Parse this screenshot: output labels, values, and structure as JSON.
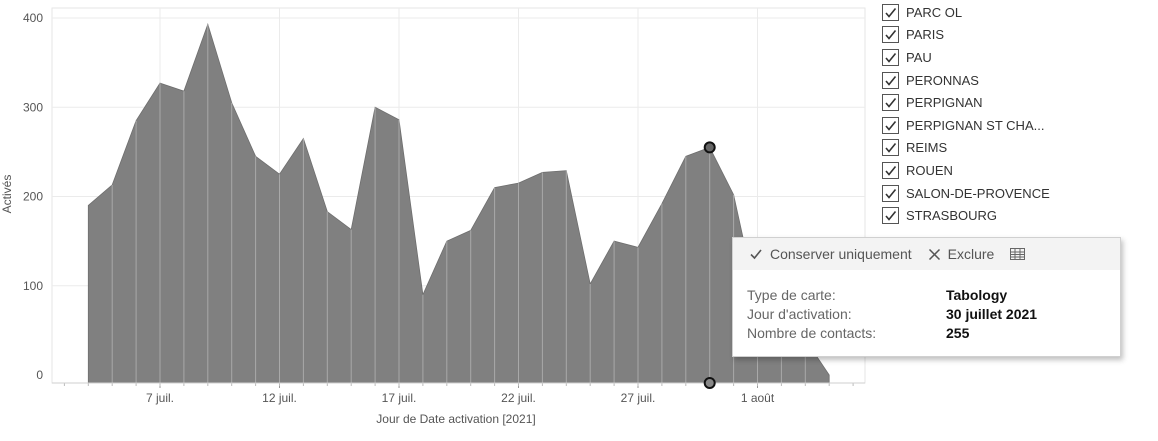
{
  "chart_data": {
    "type": "area",
    "title": "",
    "xlabel": "Jour de Date activation [2021]",
    "ylabel": "Activés",
    "ylim": [
      0,
      400
    ],
    "yticks": [
      0,
      100,
      200,
      300,
      400
    ],
    "xticks": [
      {
        "date": "2021-07-07",
        "label": "7 juil."
      },
      {
        "date": "2021-07-12",
        "label": "12 juil."
      },
      {
        "date": "2021-07-17",
        "label": "17 juil."
      },
      {
        "date": "2021-07-22",
        "label": "22 juil."
      },
      {
        "date": "2021-07-27",
        "label": "27 juil."
      },
      {
        "date": "2021-08-01",
        "label": "1 août"
      }
    ],
    "x": [
      "2021-07-04",
      "2021-07-05",
      "2021-07-06",
      "2021-07-07",
      "2021-07-08",
      "2021-07-09",
      "2021-07-10",
      "2021-07-11",
      "2021-07-12",
      "2021-07-13",
      "2021-07-14",
      "2021-07-15",
      "2021-07-16",
      "2021-07-17",
      "2021-07-18",
      "2021-07-19",
      "2021-07-20",
      "2021-07-21",
      "2021-07-22",
      "2021-07-23",
      "2021-07-24",
      "2021-07-25",
      "2021-07-26",
      "2021-07-27",
      "2021-07-28",
      "2021-07-29",
      "2021-07-30",
      "2021-07-31",
      "2021-08-01",
      "2021-08-02",
      "2021-08-03",
      "2021-08-04"
    ],
    "values": [
      190,
      213,
      285,
      327,
      318,
      393,
      305,
      245,
      225,
      265,
      183,
      163,
      300,
      286,
      90,
      150,
      162,
      210,
      215,
      227,
      229,
      102,
      150,
      143,
      192,
      245,
      255,
      202,
      80,
      60,
      40,
      0
    ],
    "grid": true,
    "highlight": {
      "date": "2021-07-30",
      "value": 255
    },
    "color": "#808080"
  },
  "legend": {
    "items": [
      "PARC OL",
      "PARIS",
      "PAU",
      "PERONNAS",
      "PERPIGNAN",
      "PERPIGNAN ST CHA...",
      "REIMS",
      "ROUEN",
      "SALON-DE-PROVENCE",
      "STRASBOURG"
    ]
  },
  "tooltip": {
    "keep_only": "Conserver uniquement",
    "exclude": "Exclure",
    "rows": [
      {
        "label": "Type de carte:",
        "value": "Tabology"
      },
      {
        "label": "Jour d'activation:",
        "value": "30 juillet 2021"
      },
      {
        "label": "Nombre de contacts:",
        "value": "255"
      }
    ]
  }
}
